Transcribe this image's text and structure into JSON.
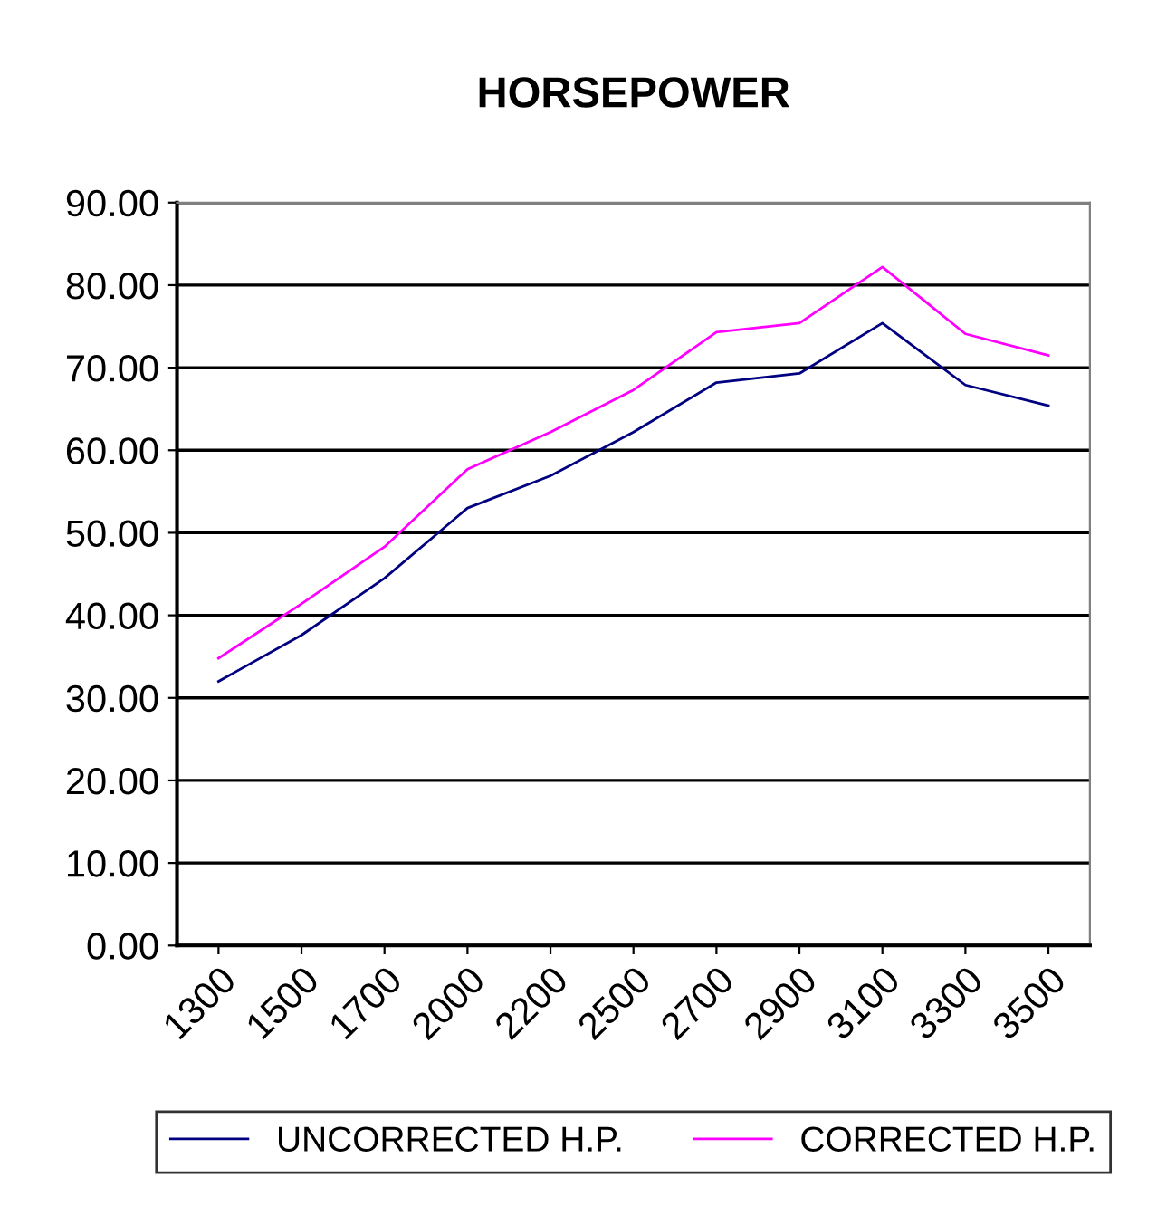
{
  "chart_data": {
    "type": "line",
    "title": "HORSEPOWER",
    "categories": [
      "1300",
      "1500",
      "1700",
      "2000",
      "2200",
      "2500",
      "2700",
      "2900",
      "3100",
      "3300",
      "3500"
    ],
    "series": [
      {
        "name": "UNCORRECTED H.P.",
        "color": "#000080",
        "values": [
          32.0,
          37.6,
          44.5,
          53.0,
          56.9,
          62.2,
          68.2,
          69.3,
          75.4,
          67.9,
          65.4
        ]
      },
      {
        "name": "CORRECTED H.P.",
        "color": "#ff00ff",
        "values": [
          34.8,
          41.4,
          48.3,
          57.7,
          62.2,
          67.3,
          74.3,
          75.4,
          82.2,
          74.1,
          71.5
        ]
      }
    ],
    "ylim": [
      0,
      90
    ],
    "yticks": [
      {
        "value": 0,
        "label": "0.00"
      },
      {
        "value": 10,
        "label": "10.00"
      },
      {
        "value": 20,
        "label": "20.00"
      },
      {
        "value": 30,
        "label": "30.00"
      },
      {
        "value": 40,
        "label": "40.00"
      },
      {
        "value": 50,
        "label": "50.00"
      },
      {
        "value": 60,
        "label": "60.00"
      },
      {
        "value": 70,
        "label": "70.00"
      },
      {
        "value": 80,
        "label": "80.00"
      },
      {
        "value": 90,
        "label": "90.00"
      }
    ],
    "grid": "y",
    "legend": "bottom",
    "marker": "none",
    "line_style": "solid"
  }
}
